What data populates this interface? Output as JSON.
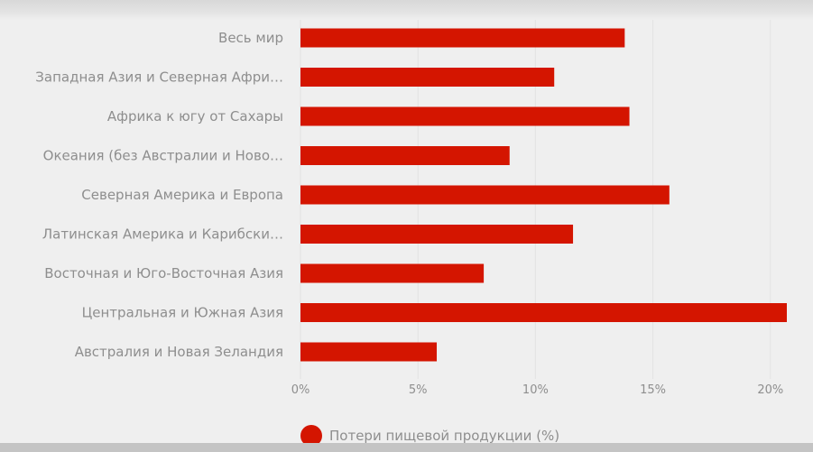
{
  "colors": {
    "bar": "#d41500",
    "grid": "#e2e2e2",
    "text": "#8e8e8e"
  },
  "legend": {
    "label": "Потери пищевой продукции (%)"
  },
  "chart_data": {
    "type": "bar",
    "orientation": "horizontal",
    "categories": [
      "Весь мир",
      "Западная Азия и Северная Афри…",
      "Африка к югу от Сахары",
      "Океания (без Австралии и Ново…",
      "Северная Америка и Европа",
      "Латинская Америка и Карибски…",
      "Восточная и Юго-Восточная Азия",
      "Центральная и Южная Азия",
      "Австралия и Новая Зеландия"
    ],
    "series": [
      {
        "name": "Потери пищевой продукции (%)",
        "values": [
          13.8,
          10.8,
          14.0,
          8.9,
          15.7,
          11.6,
          7.8,
          20.7,
          5.8
        ]
      }
    ],
    "xlim": [
      0,
      20.7
    ],
    "xticks": [
      0,
      5,
      10,
      15,
      20
    ],
    "xtick_labels": [
      "0%",
      "5%",
      "10%",
      "15%",
      "20%"
    ],
    "grid": true,
    "legend_position": "bottom"
  }
}
